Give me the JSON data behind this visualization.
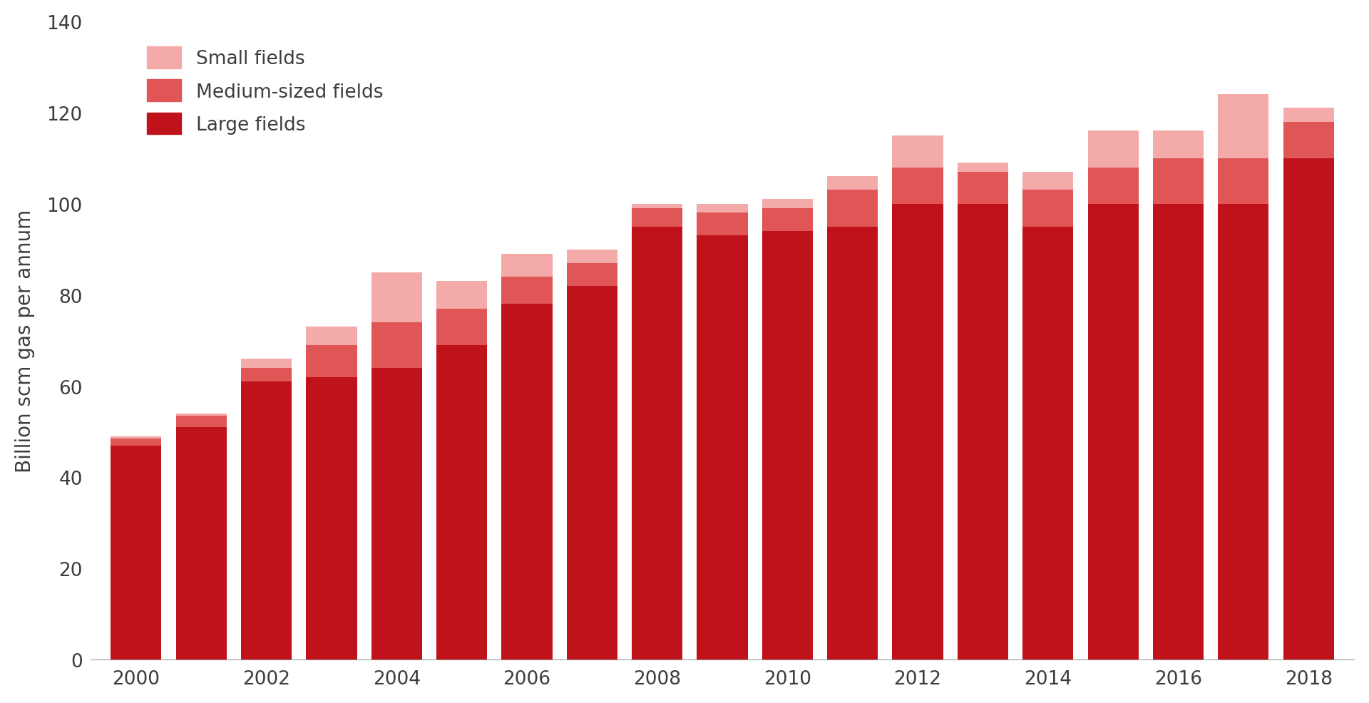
{
  "years": [
    2000,
    2001,
    2002,
    2003,
    2004,
    2005,
    2006,
    2007,
    2008,
    2009,
    2010,
    2011,
    2012,
    2013,
    2014,
    2015,
    2016,
    2017,
    2018
  ],
  "large_fields": [
    47,
    51,
    61,
    62,
    64,
    69,
    78,
    82,
    95,
    93,
    94,
    95,
    100,
    100,
    95,
    100,
    100,
    100,
    110
  ],
  "medium_fields": [
    1.5,
    2.5,
    3,
    7,
    10,
    8,
    6,
    5,
    4,
    5,
    5,
    8,
    8,
    7,
    8,
    8,
    10,
    10,
    8
  ],
  "small_fields": [
    0.5,
    0.5,
    2,
    4,
    11,
    6,
    5,
    3,
    1,
    2,
    2,
    3,
    7,
    2,
    4,
    8,
    6,
    14,
    3
  ],
  "color_large": "#c0121a",
  "color_medium": "#e05555",
  "color_small": "#f5aaaa",
  "ylabel": "Billion scm gas per annum",
  "ylim": [
    0,
    140
  ],
  "yticks": [
    0,
    20,
    40,
    60,
    80,
    100,
    120,
    140
  ],
  "xtick_years": [
    2000,
    2002,
    2004,
    2006,
    2008,
    2010,
    2012,
    2014,
    2016,
    2018
  ],
  "legend_labels": [
    "Small fields",
    "Medium-sized fields",
    "Large fields"
  ],
  "bar_width": 0.78,
  "background_color": "#ffffff",
  "text_color": "#3d3d3d",
  "tick_fontsize": 19,
  "label_fontsize": 20,
  "legend_fontsize": 19
}
